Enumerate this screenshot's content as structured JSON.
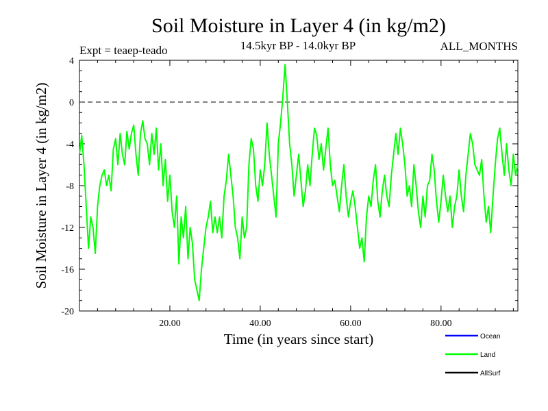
{
  "chart_data": {
    "type": "line",
    "title": "Soil Moisture in Layer 4 (in kg/m2)",
    "subtitle": "14.5kyr BP - 14.0kyr BP",
    "experiment": "Expt = teaep-teado",
    "period": "ALL_MONTHS",
    "xlabel": "Time (in years since start)",
    "ylabel": "Soil Moisture in Layer 4 (in kg/m2)",
    "xlim": [
      0,
      97
    ],
    "ylim": [
      -20,
      4
    ],
    "x_ticks": [
      20,
      40,
      60,
      80
    ],
    "x_tick_labels": [
      "20.00",
      "40.00",
      "60.00",
      "80.00"
    ],
    "y_ticks": [
      4,
      0,
      -4,
      -8,
      -12,
      -16,
      -20
    ],
    "y_tick_labels": [
      "4",
      "0",
      "-4",
      "-8",
      "-12",
      "-16",
      "-20"
    ],
    "reference_line": 0,
    "legend": [
      {
        "name": "Ocean",
        "color": "#0000ff"
      },
      {
        "name": "Land",
        "color": "#00ff00"
      },
      {
        "name": "AllSurf",
        "color": "#000000"
      }
    ],
    "series": [
      {
        "name": "Land",
        "color": "#00ff00",
        "points": [
          [
            0,
            -5
          ],
          [
            0.5,
            -3.2
          ],
          [
            1,
            -6
          ],
          [
            1.5,
            -10
          ],
          [
            2,
            -14
          ],
          [
            2.5,
            -11
          ],
          [
            3,
            -12
          ],
          [
            3.5,
            -14.5
          ],
          [
            4,
            -10
          ],
          [
            4.5,
            -8
          ],
          [
            5,
            -7
          ],
          [
            5.5,
            -6.5
          ],
          [
            6,
            -8
          ],
          [
            6.5,
            -7
          ],
          [
            7,
            -8.5
          ],
          [
            7.5,
            -4.5
          ],
          [
            8,
            -3.5
          ],
          [
            8.5,
            -6
          ],
          [
            9,
            -3
          ],
          [
            9.5,
            -5
          ],
          [
            10,
            -6
          ],
          [
            10.5,
            -2.8
          ],
          [
            11,
            -4.5
          ],
          [
            11.5,
            -3
          ],
          [
            12,
            -2.2
          ],
          [
            12.5,
            -5
          ],
          [
            13,
            -7
          ],
          [
            13.5,
            -3
          ],
          [
            14,
            -1.8
          ],
          [
            14.5,
            -3.5
          ],
          [
            15,
            -4
          ],
          [
            15.5,
            -6
          ],
          [
            16,
            -3
          ],
          [
            16.5,
            -5
          ],
          [
            17,
            -2.5
          ],
          [
            17.5,
            -6.5
          ],
          [
            18,
            -4
          ],
          [
            18.5,
            -8
          ],
          [
            19,
            -5.5
          ],
          [
            19.5,
            -9.5
          ],
          [
            20,
            -7
          ],
          [
            20.5,
            -10.5
          ],
          [
            21,
            -12
          ],
          [
            21.5,
            -9
          ],
          [
            22,
            -15.5
          ],
          [
            22.5,
            -11
          ],
          [
            23,
            -13
          ],
          [
            23.5,
            -10
          ],
          [
            24,
            -15
          ],
          [
            24.5,
            -12
          ],
          [
            25,
            -13.5
          ],
          [
            25.5,
            -17
          ],
          [
            26,
            -18
          ],
          [
            26.5,
            -19
          ],
          [
            27,
            -16
          ],
          [
            27.5,
            -14
          ],
          [
            28,
            -12
          ],
          [
            28.5,
            -11
          ],
          [
            29,
            -9.5
          ],
          [
            29.5,
            -12.5
          ],
          [
            30,
            -11
          ],
          [
            30.5,
            -12.5
          ],
          [
            31,
            -11
          ],
          [
            31.5,
            -13
          ],
          [
            32,
            -9
          ],
          [
            32.5,
            -7.5
          ],
          [
            33,
            -5
          ],
          [
            33.5,
            -7
          ],
          [
            34,
            -9
          ],
          [
            34.5,
            -12
          ],
          [
            35,
            -13
          ],
          [
            35.5,
            -15
          ],
          [
            36,
            -11
          ],
          [
            36.5,
            -13
          ],
          [
            37,
            -12
          ],
          [
            37.5,
            -6
          ],
          [
            38,
            -3.5
          ],
          [
            38.5,
            -4.5
          ],
          [
            39,
            -8
          ],
          [
            39.5,
            -9.5
          ],
          [
            40,
            -6.5
          ],
          [
            40.5,
            -8
          ],
          [
            41,
            -6
          ],
          [
            41.5,
            -2
          ],
          [
            42,
            -5
          ],
          [
            42.5,
            -7
          ],
          [
            43,
            -9
          ],
          [
            43.5,
            -11
          ],
          [
            44,
            -4
          ],
          [
            44.5,
            -2
          ],
          [
            45,
            0.5
          ],
          [
            45.5,
            3.6
          ],
          [
            46,
            0
          ],
          [
            46.5,
            -4
          ],
          [
            47,
            -6
          ],
          [
            47.5,
            -9
          ],
          [
            48,
            -7
          ],
          [
            48.5,
            -5
          ],
          [
            49,
            -7.5
          ],
          [
            49.5,
            -10
          ],
          [
            50,
            -8.5
          ],
          [
            50.5,
            -6
          ],
          [
            51,
            -8
          ],
          [
            51.5,
            -5
          ],
          [
            52,
            -2.5
          ],
          [
            52.5,
            -3.2
          ],
          [
            53,
            -5.5
          ],
          [
            53.5,
            -4
          ],
          [
            54,
            -6.5
          ],
          [
            54.5,
            -4.5
          ],
          [
            55,
            -2.5
          ],
          [
            55.5,
            -6
          ],
          [
            56,
            -8
          ],
          [
            56.5,
            -7.5
          ],
          [
            57,
            -9
          ],
          [
            57.5,
            -10.5
          ],
          [
            58,
            -8
          ],
          [
            58.5,
            -6
          ],
          [
            59,
            -9
          ],
          [
            59.5,
            -11
          ],
          [
            60,
            -9.5
          ],
          [
            60.5,
            -8.5
          ],
          [
            61,
            -10
          ],
          [
            61.5,
            -12
          ],
          [
            62,
            -14
          ],
          [
            62.5,
            -13
          ],
          [
            63,
            -15.3
          ],
          [
            63.5,
            -11
          ],
          [
            64,
            -9
          ],
          [
            64.5,
            -10
          ],
          [
            65,
            -7.5
          ],
          [
            65.5,
            -6
          ],
          [
            66,
            -9.5
          ],
          [
            66.5,
            -11
          ],
          [
            67,
            -8.5
          ],
          [
            67.5,
            -7
          ],
          [
            68,
            -9
          ],
          [
            68.5,
            -10
          ],
          [
            69,
            -7
          ],
          [
            69.5,
            -5
          ],
          [
            70,
            -3
          ],
          [
            70.5,
            -5
          ],
          [
            71,
            -2.5
          ],
          [
            71.5,
            -4
          ],
          [
            72,
            -6
          ],
          [
            72.5,
            -9
          ],
          [
            73,
            -8
          ],
          [
            73.5,
            -10
          ],
          [
            74,
            -6
          ],
          [
            74.5,
            -8
          ],
          [
            75,
            -10.5
          ],
          [
            75.5,
            -12
          ],
          [
            76,
            -9
          ],
          [
            76.5,
            -11
          ],
          [
            77,
            -8
          ],
          [
            77.5,
            -7.5
          ],
          [
            78,
            -5
          ],
          [
            78.5,
            -6.5
          ],
          [
            79,
            -9.5
          ],
          [
            79.5,
            -11.5
          ],
          [
            80,
            -9.5
          ],
          [
            80.5,
            -7
          ],
          [
            81,
            -9
          ],
          [
            81.5,
            -10.5
          ],
          [
            82,
            -9
          ],
          [
            82.5,
            -12
          ],
          [
            83,
            -10
          ],
          [
            83.5,
            -9
          ],
          [
            84,
            -6.5
          ],
          [
            84.5,
            -9
          ],
          [
            85,
            -10.5
          ],
          [
            85.5,
            -7
          ],
          [
            86,
            -5
          ],
          [
            86.5,
            -3
          ],
          [
            87,
            -4
          ],
          [
            87.5,
            -6
          ],
          [
            88,
            -6.5
          ],
          [
            88.5,
            -7
          ],
          [
            89,
            -5.5
          ],
          [
            89.5,
            -9
          ],
          [
            90,
            -11.5
          ],
          [
            90.5,
            -10
          ],
          [
            91,
            -12.5
          ],
          [
            91.5,
            -9
          ],
          [
            92,
            -6
          ],
          [
            92.5,
            -3.5
          ],
          [
            93,
            -2.5
          ],
          [
            93.5,
            -5
          ],
          [
            94,
            -7
          ],
          [
            94.5,
            -4
          ],
          [
            95,
            -6.5
          ],
          [
            95.5,
            -8
          ],
          [
            96,
            -5
          ],
          [
            96.5,
            -7
          ],
          [
            97,
            -6
          ]
        ]
      }
    ]
  }
}
